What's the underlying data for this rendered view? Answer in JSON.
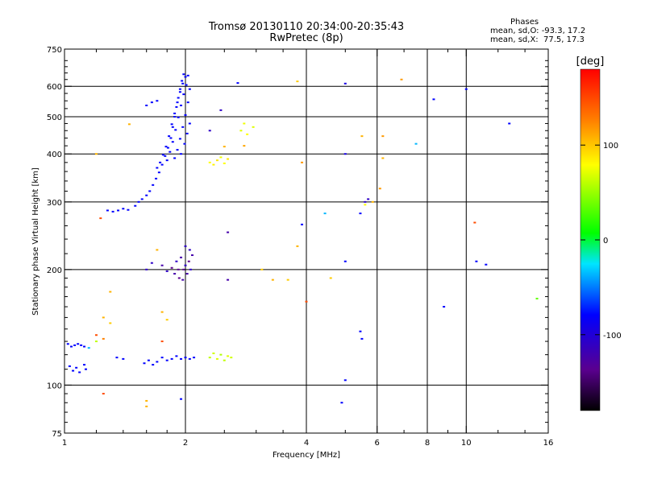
{
  "chart_data": {
    "type": "scatter",
    "title": "Tromsø 20130110 20:34:00-20:35:43",
    "subtitle": "RwPretec (8p)",
    "xlabel": "Frequency [MHz]",
    "ylabel": "Stationary phase Virtual Height [km]",
    "x_scale": "log",
    "y_scale": "log",
    "xlim": [
      1,
      16
    ],
    "ylim": [
      75,
      750
    ],
    "x_ticks": [
      1,
      2,
      4,
      6,
      8,
      10,
      16
    ],
    "y_ticks": [
      75,
      100,
      200,
      300,
      400,
      500,
      600,
      750
    ],
    "x_gridlines": [
      2,
      4,
      6,
      8,
      10
    ],
    "y_gridlines": [
      100,
      200,
      300,
      400,
      500,
      600
    ],
    "grid": true,
    "phases": {
      "title": "Phases",
      "o_line": "mean, sd,O: -93.3, 17.2",
      "x_line": "mean, sd,X:  77.5, 17.3"
    },
    "colorbar": {
      "label": "[deg]",
      "min": -180,
      "max": 180,
      "ticks": [
        100,
        0,
        -100
      ],
      "tick_labels": [
        "100",
        "0",
        "-100"
      ]
    },
    "series": [
      {
        "phase_group": "O",
        "points": [
          [
            1.02,
            128,
            -100
          ],
          [
            1.04,
            126,
            -100
          ],
          [
            1.06,
            127,
            -100
          ],
          [
            1.08,
            128,
            -100
          ],
          [
            1.1,
            127,
            -100
          ],
          [
            1.12,
            126,
            -100
          ],
          [
            1.03,
            112,
            -100
          ],
          [
            1.05,
            109,
            -100
          ],
          [
            1.07,
            111,
            -100
          ],
          [
            1.09,
            108,
            -100
          ],
          [
            1.12,
            113,
            -100
          ],
          [
            1.13,
            110,
            -100
          ],
          [
            1.28,
            285,
            -100
          ],
          [
            1.32,
            283,
            -100
          ],
          [
            1.36,
            285,
            -100
          ],
          [
            1.4,
            288,
            -100
          ],
          [
            1.44,
            286,
            -100
          ],
          [
            1.5,
            293,
            -100
          ],
          [
            1.53,
            300,
            -100
          ],
          [
            1.56,
            305,
            -100
          ],
          [
            1.6,
            312,
            -100
          ],
          [
            1.63,
            320,
            -100
          ],
          [
            1.66,
            332,
            -100
          ],
          [
            1.69,
            345,
            -100
          ],
          [
            1.72,
            358,
            -100
          ],
          [
            1.75,
            375,
            -100
          ],
          [
            1.78,
            395,
            -100
          ],
          [
            1.81,
            415,
            -100
          ],
          [
            1.84,
            440,
            -100
          ],
          [
            1.86,
            470,
            -100
          ],
          [
            1.88,
            500,
            -100
          ],
          [
            1.9,
            530,
            -100
          ],
          [
            1.92,
            560,
            -100
          ],
          [
            1.94,
            590,
            -100
          ],
          [
            1.96,
            620,
            -100
          ],
          [
            1.98,
            645,
            -100
          ],
          [
            1.7,
            368,
            -100
          ],
          [
            1.73,
            380,
            -100
          ],
          [
            1.76,
            398,
            -100
          ],
          [
            1.79,
            418,
            -100
          ],
          [
            1.82,
            445,
            -100
          ],
          [
            1.85,
            478,
            -100
          ],
          [
            1.88,
            510,
            -100
          ],
          [
            1.91,
            545,
            -100
          ],
          [
            1.94,
            580,
            -100
          ],
          [
            1.97,
            610,
            -100
          ],
          [
            2.0,
            635,
            -100
          ],
          [
            1.8,
            385,
            -100
          ],
          [
            1.83,
            405,
            -100
          ],
          [
            1.86,
            430,
            -100
          ],
          [
            1.89,
            462,
            -100
          ],
          [
            1.92,
            498,
            -100
          ],
          [
            1.95,
            535,
            -100
          ],
          [
            1.98,
            572,
            -100
          ],
          [
            2.01,
            605,
            -100
          ],
          [
            2.03,
            640,
            -100
          ],
          [
            1.88,
            390,
            -100
          ],
          [
            1.91,
            410,
            -100
          ],
          [
            1.94,
            438,
            -100
          ],
          [
            1.97,
            470,
            -100
          ],
          [
            2.0,
            505,
            -100
          ],
          [
            2.03,
            545,
            -100
          ],
          [
            2.05,
            590,
            -100
          ],
          [
            1.95,
            400,
            -100
          ],
          [
            1.99,
            425,
            -100
          ],
          [
            2.02,
            452,
            -100
          ],
          [
            2.05,
            480,
            -100
          ],
          [
            1.6,
            535,
            -100
          ],
          [
            1.65,
            545,
            -100
          ],
          [
            1.7,
            550,
            -100
          ],
          [
            1.6,
            200,
            -120
          ],
          [
            1.65,
            208,
            -120
          ],
          [
            1.75,
            205,
            -130
          ],
          [
            1.8,
            198,
            -120
          ],
          [
            1.85,
            202,
            -140
          ],
          [
            1.88,
            195,
            -130
          ],
          [
            1.9,
            210,
            -120
          ],
          [
            1.93,
            190,
            -140
          ],
          [
            1.95,
            215,
            -130
          ],
          [
            1.98,
            200,
            -140
          ],
          [
            2.0,
            205,
            -120
          ],
          [
            2.02,
            195,
            -130
          ],
          [
            2.04,
            210,
            -140
          ],
          [
            2.06,
            200,
            -120
          ],
          [
            2.08,
            218,
            -130
          ],
          [
            1.92,
            200,
            -140
          ],
          [
            1.97,
            188,
            -130
          ],
          [
            2.0,
            230,
            -120
          ],
          [
            2.05,
            225,
            -120
          ],
          [
            1.35,
            118,
            -100
          ],
          [
            1.4,
            117,
            -100
          ],
          [
            1.58,
            114,
            -100
          ],
          [
            1.62,
            116,
            -100
          ],
          [
            1.66,
            113,
            -100
          ],
          [
            1.7,
            115,
            -100
          ],
          [
            1.75,
            118,
            -100
          ],
          [
            1.8,
            116,
            -100
          ],
          [
            1.85,
            117,
            -100
          ],
          [
            1.9,
            119,
            -100
          ],
          [
            1.95,
            117,
            -100
          ],
          [
            2.0,
            118,
            -100
          ],
          [
            2.05,
            117,
            -100
          ],
          [
            2.1,
            118,
            -100
          ],
          [
            2.55,
            188,
            -130
          ],
          [
            2.55,
            250,
            -130
          ],
          [
            2.7,
            612,
            -100
          ],
          [
            5.0,
            610,
            -110
          ],
          [
            5.0,
            210,
            -100
          ],
          [
            5.0,
            400,
            -110
          ],
          [
            5.45,
            280,
            -100
          ],
          [
            5.6,
            300,
            -120
          ],
          [
            5.7,
            305,
            -120
          ],
          [
            3.9,
            262,
            -100
          ],
          [
            10.0,
            590,
            -100
          ],
          [
            8.3,
            555,
            -100
          ],
          [
            10.6,
            210,
            -100
          ],
          [
            11.2,
            206,
            -100
          ],
          [
            12.8,
            480,
            -100
          ],
          [
            5.45,
            138,
            -100
          ],
          [
            5.5,
            132,
            -100
          ],
          [
            8.8,
            160,
            -100
          ],
          [
            5.0,
            103,
            -100
          ],
          [
            4.9,
            90,
            -100
          ],
          [
            1.95,
            92,
            -100
          ],
          [
            2.3,
            460,
            -120
          ],
          [
            2.45,
            520,
            -120
          ]
        ]
      },
      {
        "phase_group": "X",
        "points": [
          [
            2.3,
            380,
            80
          ],
          [
            2.35,
            375,
            85
          ],
          [
            2.4,
            385,
            90
          ],
          [
            2.45,
            392,
            75
          ],
          [
            2.5,
            378,
            80
          ],
          [
            2.55,
            388,
            90
          ],
          [
            2.75,
            460,
            70
          ],
          [
            2.8,
            480,
            75
          ],
          [
            2.85,
            450,
            80
          ],
          [
            2.95,
            470,
            70
          ],
          [
            2.3,
            118,
            60
          ],
          [
            2.35,
            121,
            65
          ],
          [
            2.4,
            117,
            70
          ],
          [
            2.45,
            120,
            55
          ],
          [
            2.5,
            116,
            60
          ],
          [
            2.55,
            119,
            70
          ],
          [
            2.6,
            118,
            65
          ],
          [
            3.1,
            200,
            100
          ],
          [
            3.3,
            188,
            110
          ],
          [
            3.6,
            188,
            100
          ],
          [
            4.6,
            190,
            100
          ],
          [
            3.8,
            230,
            110
          ],
          [
            3.9,
            380,
            120
          ],
          [
            3.8,
            618,
            100
          ],
          [
            6.9,
            625,
            120
          ],
          [
            5.5,
            445,
            110
          ],
          [
            6.2,
            445,
            120
          ],
          [
            6.2,
            390,
            110
          ],
          [
            6.1,
            325,
            120
          ],
          [
            5.85,
            300,
            110
          ],
          [
            5.6,
            295,
            80
          ],
          [
            1.7,
            225,
            110
          ],
          [
            1.75,
            155,
            110
          ],
          [
            1.8,
            148,
            100
          ],
          [
            1.25,
            150,
            110
          ],
          [
            1.3,
            145,
            100
          ],
          [
            1.3,
            175,
            110
          ],
          [
            1.2,
            400,
            110
          ],
          [
            1.45,
            478,
            110
          ],
          [
            2.5,
            418,
            110
          ],
          [
            2.8,
            420,
            115
          ],
          [
            1.6,
            88,
            110
          ],
          [
            1.6,
            91,
            110
          ],
          [
            1.2,
            130,
            60
          ]
        ]
      },
      {
        "phase_group": "other",
        "points": [
          [
            4.0,
            165,
            150
          ],
          [
            1.25,
            95,
            150
          ],
          [
            1.23,
            272,
            150
          ],
          [
            1.75,
            130,
            150
          ],
          [
            10.5,
            265,
            150
          ],
          [
            15.0,
            168,
            30
          ],
          [
            7.5,
            425,
            -60
          ],
          [
            4.45,
            280,
            -60
          ],
          [
            1.15,
            125,
            -60
          ],
          [
            1.2,
            135,
            150
          ],
          [
            1.25,
            132,
            130
          ]
        ]
      }
    ]
  }
}
